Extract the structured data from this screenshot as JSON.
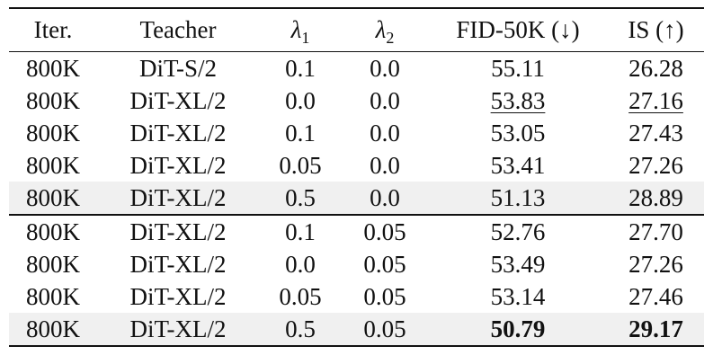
{
  "table": {
    "headers": {
      "iter": "Iter.",
      "teacher": "Teacher",
      "lambda1_symbol": "λ",
      "lambda1_sub": "1",
      "lambda2_symbol": "λ",
      "lambda2_sub": "2",
      "fid": "FID-50K (↓)",
      "is": "IS (↑)"
    },
    "group1": [
      {
        "iter": "800K",
        "teacher": "DiT-S/2",
        "lambda1": "0.1",
        "lambda2": "0.0",
        "fid": "55.11",
        "is": "26.28"
      },
      {
        "iter": "800K",
        "teacher": "DiT-XL/2",
        "lambda1": "0.0",
        "lambda2": "0.0",
        "fid": "53.83",
        "is": "27.16"
      },
      {
        "iter": "800K",
        "teacher": "DiT-XL/2",
        "lambda1": "0.1",
        "lambda2": "0.0",
        "fid": "53.05",
        "is": "27.43"
      },
      {
        "iter": "800K",
        "teacher": "DiT-XL/2",
        "lambda1": "0.05",
        "lambda2": "0.0",
        "fid": "53.41",
        "is": "27.26"
      },
      {
        "iter": "800K",
        "teacher": "DiT-XL/2",
        "lambda1": "0.5",
        "lambda2": "0.0",
        "fid": "51.13",
        "is": "28.89"
      }
    ],
    "group2": [
      {
        "iter": "800K",
        "teacher": "DiT-XL/2",
        "lambda1": "0.1",
        "lambda2": "0.05",
        "fid": "52.76",
        "is": "27.70"
      },
      {
        "iter": "800K",
        "teacher": "DiT-XL/2",
        "lambda1": "0.0",
        "lambda2": "0.05",
        "fid": "53.49",
        "is": "27.26"
      },
      {
        "iter": "800K",
        "teacher": "DiT-XL/2",
        "lambda1": "0.05",
        "lambda2": "0.05",
        "fid": "53.14",
        "is": "27.46"
      },
      {
        "iter": "800K",
        "teacher": "DiT-XL/2",
        "lambda1": "0.5",
        "lambda2": "0.05",
        "fid": "50.79",
        "is": "29.17"
      }
    ]
  }
}
